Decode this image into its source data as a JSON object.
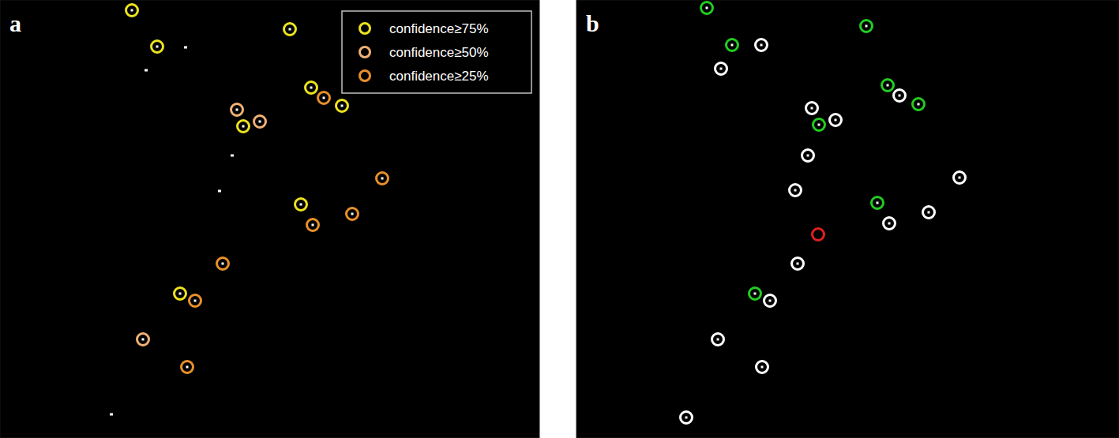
{
  "chart_data": [
    {
      "type": "scatter",
      "title": "a",
      "xlim": [
        0,
        683
      ],
      "ylim": [
        555,
        0
      ],
      "tick_labels": false,
      "legend": "top-right",
      "series": [
        {
          "name": "confidence≥75%",
          "color": "#ece21e",
          "marker": "ring-dot",
          "x": [
            167,
            199,
            367,
            394,
            433,
            308,
            381,
            228
          ],
          "values": [
            13,
            59,
            37,
            111,
            134,
            160,
            259,
            372
          ]
        },
        {
          "name": "confidence≥50%",
          "color": "#f0b075",
          "marker": "ring-dot",
          "x": [
            300,
            329,
            181
          ],
          "values": [
            139,
            154,
            430
          ]
        },
        {
          "name": "confidence≥25%",
          "color": "#e8902a",
          "marker": "ring-dot",
          "x": [
            410,
            484,
            446,
            396,
            282,
            247,
            237
          ],
          "values": [
            124,
            226,
            271,
            285,
            334,
            381,
            465
          ]
        },
        {
          "color": "#ffffff",
          "marker": "dot",
          "x": [
            235,
            185,
            294,
            278,
            141
          ],
          "values": [
            60,
            89,
            197,
            242,
            525
          ]
        }
      ]
    },
    {
      "type": "scatter",
      "title": "b",
      "xlim": [
        0,
        687
      ],
      "ylim": [
        555,
        0
      ],
      "tick_labels": false,
      "series": [
        {
          "color": "#22cc22",
          "marker": "ring-dot",
          "x": [
            165,
            197,
            367,
            394,
            433,
            307,
            381,
            226
          ],
          "values": [
            10,
            57,
            33,
            108,
            132,
            158,
            257,
            372
          ]
        },
        {
          "color": "#ffffff",
          "marker": "ring-dot",
          "x": [
            234,
            183,
            298,
            328,
            293,
            277,
            485,
            446,
            396,
            409,
            280,
            245,
            179,
            235,
            139
          ],
          "values": [
            57,
            87,
            137,
            152,
            197,
            241,
            225,
            269,
            283,
            121,
            334,
            381,
            430,
            465,
            529
          ]
        },
        {
          "color": "#e02020",
          "marker": "ring",
          "x": [
            306
          ],
          "values": [
            297
          ]
        }
      ]
    }
  ]
}
